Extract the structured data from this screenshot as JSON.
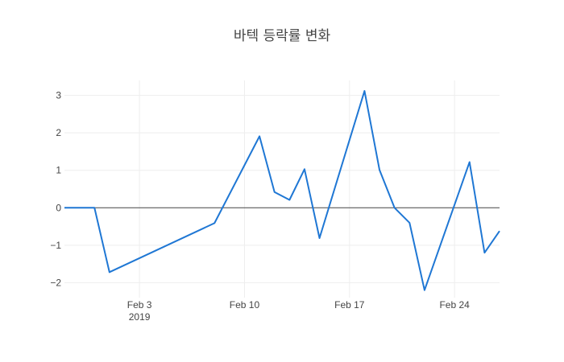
{
  "chart_data": {
    "type": "line",
    "title": "바텍 등락률 변화",
    "xlabel": "",
    "ylabel": "",
    "x_axis_type": "date",
    "xlim": [
      "2019-01-29",
      "2019-02-27"
    ],
    "ylim": [
      -2.4,
      3.4
    ],
    "x_ticks": [
      {
        "date": "2019-02-03",
        "label": "Feb 3",
        "sublabel": "2019"
      },
      {
        "date": "2019-02-10",
        "label": "Feb 10",
        "sublabel": ""
      },
      {
        "date": "2019-02-17",
        "label": "Feb 17",
        "sublabel": ""
      },
      {
        "date": "2019-02-24",
        "label": "Feb 24",
        "sublabel": ""
      }
    ],
    "y_ticks": [
      {
        "value": 3,
        "label": "3"
      },
      {
        "value": 2,
        "label": "2"
      },
      {
        "value": 1,
        "label": "1"
      },
      {
        "value": 0,
        "label": "0"
      },
      {
        "value": -1,
        "label": "−1"
      },
      {
        "value": -2,
        "label": "−2"
      }
    ],
    "grid": true,
    "zero_line": true,
    "series": [
      {
        "color": "#1f77d4",
        "points": [
          {
            "x": "2019-01-29",
            "y": 0
          },
          {
            "x": "2019-01-30",
            "y": 0
          },
          {
            "x": "2019-01-31",
            "y": 0
          },
          {
            "x": "2019-02-01",
            "y": -1.72
          },
          {
            "x": "2019-02-08",
            "y": -0.41
          },
          {
            "x": "2019-02-11",
            "y": 1.91
          },
          {
            "x": "2019-02-12",
            "y": 0.42
          },
          {
            "x": "2019-02-13",
            "y": 0.21
          },
          {
            "x": "2019-02-14",
            "y": 1.03
          },
          {
            "x": "2019-02-15",
            "y": -0.81
          },
          {
            "x": "2019-02-18",
            "y": 3.12
          },
          {
            "x": "2019-02-19",
            "y": 1.01
          },
          {
            "x": "2019-02-20",
            "y": 0
          },
          {
            "x": "2019-02-21",
            "y": -0.4
          },
          {
            "x": "2019-02-22",
            "y": -2.2
          },
          {
            "x": "2019-02-25",
            "y": 1.22
          },
          {
            "x": "2019-02-26",
            "y": -1.2
          },
          {
            "x": "2019-02-27",
            "y": -0.62
          }
        ]
      }
    ]
  }
}
